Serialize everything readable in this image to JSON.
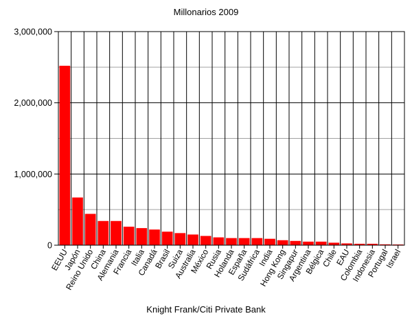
{
  "chart_data": {
    "type": "bar",
    "title": "Millonarios 2009",
    "xlabel": "Knight Frank/Citi Private Bank",
    "ylabel": "",
    "ylim": [
      0,
      3000000
    ],
    "y_ticks": [
      0,
      1000000,
      2000000,
      3000000
    ],
    "y_tick_labels": [
      "0",
      "1,000,000",
      "2,000,000",
      "3,000,000"
    ],
    "grid": true,
    "colors": {
      "bar": "#ff0000",
      "major_grid": "#000000",
      "minor_grid": "#a0a0a0"
    },
    "categories": [
      "EEUU",
      "Japón",
      "Reino Unido",
      "China",
      "Alemania",
      "Francia",
      "Italia",
      "Canadá",
      "Brasil",
      "Suiza",
      "Australia",
      "México",
      "Rusia",
      "Holanda",
      "España",
      "Sudáfrica",
      "India",
      "Hong Kong",
      "Singapur",
      "Argentina",
      "Bélgica",
      "Chile",
      "EAU",
      "Colombia",
      "Indonesia",
      "Portugal",
      "Israel"
    ],
    "values": [
      2520000,
      670000,
      440000,
      340000,
      340000,
      260000,
      240000,
      220000,
      190000,
      170000,
      150000,
      130000,
      110000,
      100000,
      100000,
      100000,
      90000,
      70000,
      60000,
      50000,
      50000,
      35000,
      25000,
      20000,
      20000,
      12000,
      10000
    ]
  }
}
